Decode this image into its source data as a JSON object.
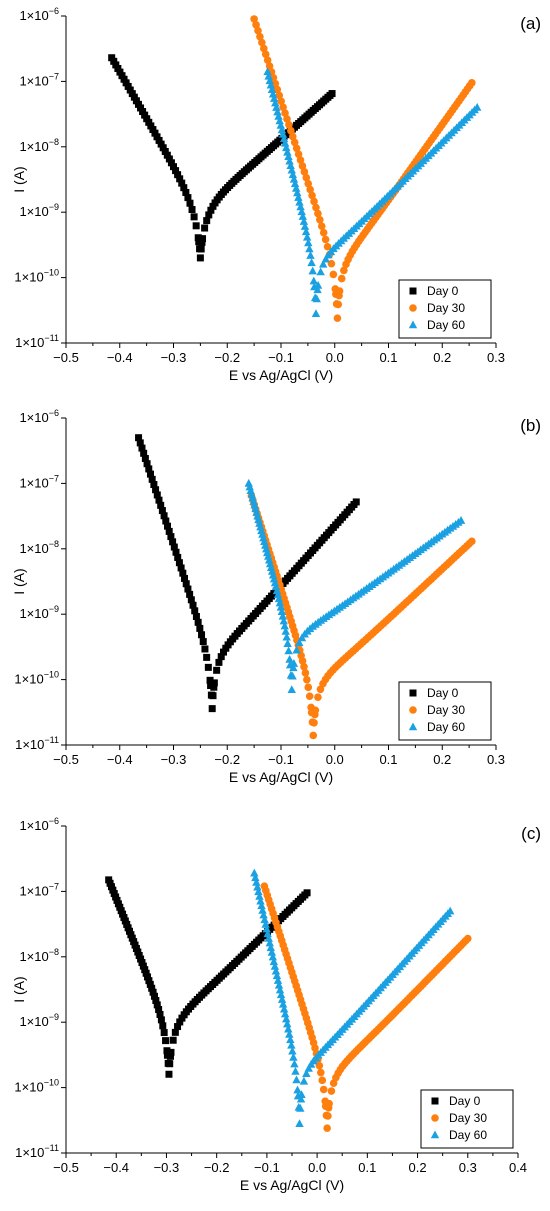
{
  "chart_data": [
    {
      "type": "scatter",
      "panel_label": "(a)",
      "xlabel": "E vs Ag/AgCl (V)",
      "ylabel": "I (A)",
      "xlim": [
        -0.5,
        0.3
      ],
      "x_ticks": [
        -0.5,
        -0.4,
        -0.3,
        -0.2,
        -0.1,
        0.0,
        0.1,
        0.2,
        0.3
      ],
      "x_tick_labels": [
        "−0.5",
        "−0.4",
        "−0.3",
        "−0.2",
        "−0.1",
        "0.0",
        "0.1",
        "0.2",
        "0.3"
      ],
      "y_scale": "log",
      "ylim": [
        1e-11,
        1e-06
      ],
      "y_tick_exponents": [
        -11,
        -10,
        -9,
        -8,
        -7,
        -6
      ],
      "y_tick_base": "1×10",
      "grid": false,
      "legend_placement": "bottom-right",
      "series": [
        {
          "name": "Day 0",
          "marker": "square",
          "color": "#000000",
          "ecorr": -0.25,
          "icorr": 1e-09,
          "x_start": -0.415,
          "y_start": 2.3e-07,
          "x_end": -0.005,
          "y_end": 6.5e-08
        },
        {
          "name": "Day 30",
          "marker": "circle",
          "color": "#FF7F0E",
          "ecorr": 0.005,
          "icorr": 1.2e-10,
          "x_start": -0.15,
          "y_start": 9e-07,
          "x_end": 0.255,
          "y_end": 9.5e-08
        },
        {
          "name": "Day 60",
          "marker": "triangle",
          "color": "#1BA1E2",
          "ecorr": -0.035,
          "icorr": 1.4e-10,
          "x_start": -0.125,
          "y_start": 1.4e-07,
          "x_end": 0.265,
          "y_end": 4e-08
        }
      ]
    },
    {
      "type": "scatter",
      "panel_label": "(b)",
      "xlabel": "E vs Ag/AgCl (V)",
      "ylabel": "I (A)",
      "xlim": [
        -0.5,
        0.3
      ],
      "x_ticks": [
        -0.5,
        -0.4,
        -0.3,
        -0.2,
        -0.1,
        0.0,
        0.1,
        0.2,
        0.3
      ],
      "x_tick_labels": [
        "−0.5",
        "−0.4",
        "−0.3",
        "−0.2",
        "−0.1",
        "0.0",
        "0.1",
        "0.2",
        "0.3"
      ],
      "y_scale": "log",
      "ylim": [
        1e-11,
        1e-06
      ],
      "y_tick_exponents": [
        -11,
        -10,
        -9,
        -8,
        -7,
        -6
      ],
      "y_tick_base": "1×10",
      "grid": false,
      "legend_placement": "bottom-right",
      "series": [
        {
          "name": "Day 0",
          "marker": "square",
          "color": "#000000",
          "ecorr": -0.228,
          "icorr": 1.8e-10,
          "x_start": -0.365,
          "y_start": 5e-07,
          "x_end": 0.04,
          "y_end": 5.2e-08
        },
        {
          "name": "Day 30",
          "marker": "circle",
          "color": "#FF7F0E",
          "ecorr": -0.04,
          "icorr": 7e-11,
          "x_start": -0.155,
          "y_start": 6.5e-08,
          "x_end": 0.255,
          "y_end": 1.3e-08
        },
        {
          "name": "Day 60",
          "marker": "triangle",
          "color": "#1BA1E2",
          "ecorr": -0.08,
          "icorr": 3.5e-10,
          "x_start": -0.16,
          "y_start": 1e-07,
          "x_end": 0.235,
          "y_end": 2.7e-08
        }
      ]
    },
    {
      "type": "scatter",
      "panel_label": "(c)",
      "xlabel": "E vs Ag/AgCl (V)",
      "ylabel": "I (A)",
      "xlim": [
        -0.5,
        0.4
      ],
      "x_ticks": [
        -0.5,
        -0.4,
        -0.3,
        -0.2,
        -0.1,
        0.0,
        0.1,
        0.2,
        0.3,
        0.4
      ],
      "x_tick_labels": [
        "−0.5",
        "−0.4",
        "−0.3",
        "−0.2",
        "−0.1",
        "0.0",
        "0.1",
        "0.2",
        "0.3",
        "0.4"
      ],
      "y_scale": "log",
      "ylim": [
        1e-11,
        1e-06
      ],
      "y_tick_exponents": [
        -11,
        -10,
        -9,
        -8,
        -7,
        -6
      ],
      "y_tick_base": "1×10",
      "grid": false,
      "legend_placement": "bottom-right",
      "series": [
        {
          "name": "Day 0",
          "marker": "square",
          "color": "#000000",
          "ecorr": -0.295,
          "icorr": 8e-10,
          "x_start": -0.415,
          "y_start": 1.5e-07,
          "x_end": -0.02,
          "y_end": 9.5e-08
        },
        {
          "name": "Day 30",
          "marker": "circle",
          "color": "#FF7F0E",
          "ecorr": 0.02,
          "icorr": 1.2e-10,
          "x_start": -0.105,
          "y_start": 1.2e-07,
          "x_end": 0.3,
          "y_end": 1.9e-08
        },
        {
          "name": "Day 60",
          "marker": "triangle",
          "color": "#1BA1E2",
          "ecorr": -0.035,
          "icorr": 1.4e-10,
          "x_start": -0.125,
          "y_start": 1.9e-07,
          "x_end": 0.265,
          "y_end": 5e-08
        }
      ]
    }
  ]
}
